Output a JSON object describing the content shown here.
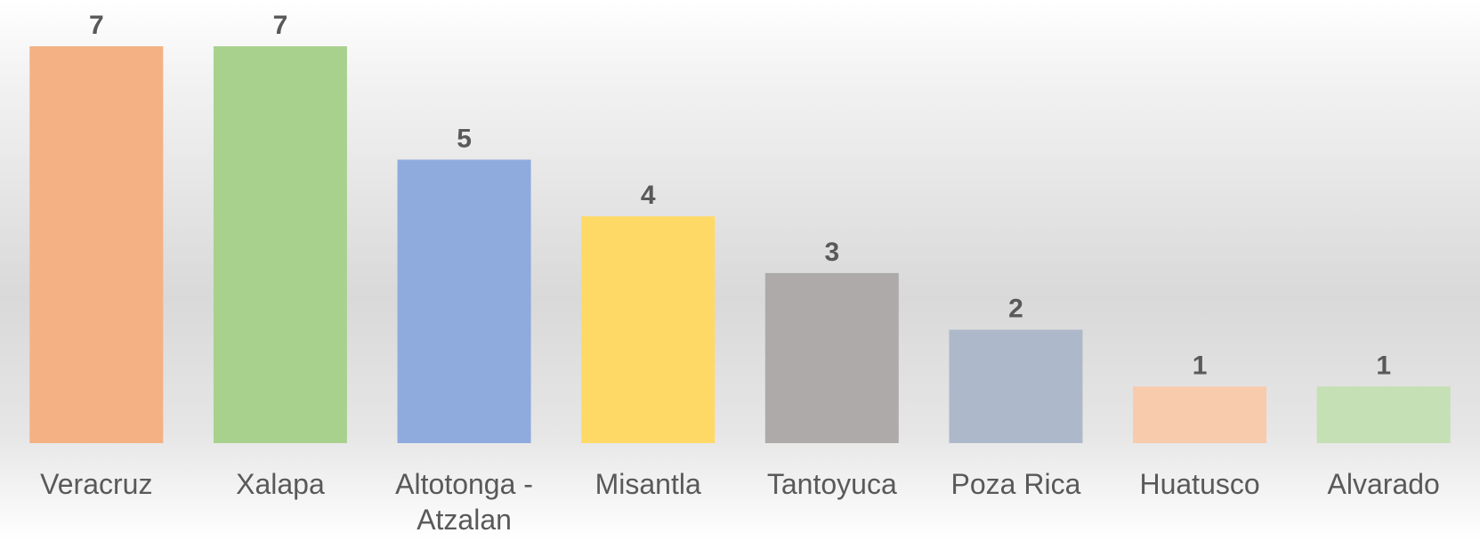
{
  "chart_data": {
    "type": "bar",
    "categories": [
      "Veracruz",
      "Xalapa",
      "Altotonga - Atzalan",
      "Misantla",
      "Tantoyuca",
      "Poza Rica",
      "Huatusco",
      "Alvarado"
    ],
    "values": [
      7,
      7,
      5,
      4,
      3,
      2,
      1,
      1
    ],
    "colors": [
      "#f4b183",
      "#a9d18e",
      "#8faadc",
      "#ffd966",
      "#aeaaaa",
      "#adb9ca",
      "#f8cbad",
      "#c5e0b4"
    ]
  }
}
